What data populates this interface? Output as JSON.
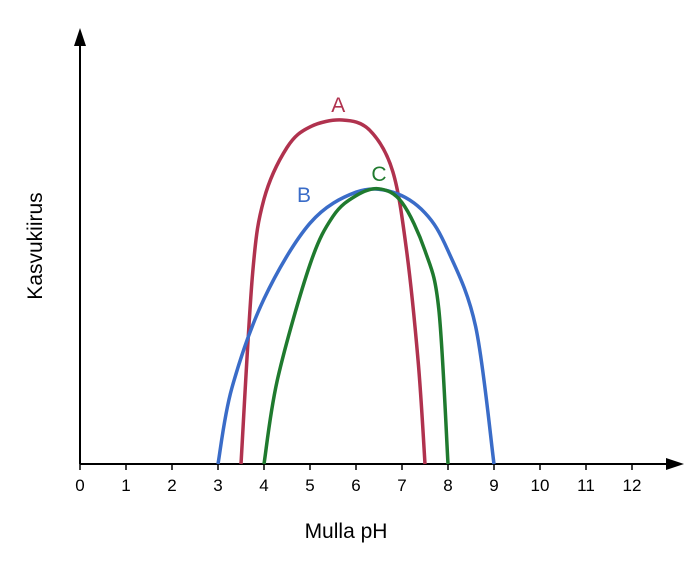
{
  "chart_data": {
    "type": "line",
    "xlabel": "Mulla pH",
    "ylabel": "Kasvukiirus",
    "x_ticks": [
      0,
      1,
      2,
      3,
      4,
      5,
      6,
      7,
      8,
      9,
      10,
      11,
      12
    ],
    "xlim": [
      0,
      13
    ],
    "ylim": [
      0,
      1
    ],
    "y_ticks_shown": false,
    "grid": false,
    "series": [
      {
        "name": "A",
        "color": "#b0324e",
        "points": [
          [
            3.5,
            0
          ],
          [
            3.75,
            0.55
          ],
          [
            4.0,
            0.77
          ],
          [
            4.5,
            0.92
          ],
          [
            5.0,
            0.98
          ],
          [
            5.7,
            1.0
          ],
          [
            6.3,
            0.97
          ],
          [
            6.8,
            0.85
          ],
          [
            7.1,
            0.62
          ],
          [
            7.35,
            0.3
          ],
          [
            7.5,
            0
          ]
        ]
      },
      {
        "name": "B",
        "color": "#3a6cc8",
        "points": [
          [
            3.0,
            0
          ],
          [
            3.3,
            0.22
          ],
          [
            4.0,
            0.48
          ],
          [
            5.0,
            0.7
          ],
          [
            6.0,
            0.79
          ],
          [
            6.8,
            0.79
          ],
          [
            7.5,
            0.73
          ],
          [
            8.0,
            0.62
          ],
          [
            8.6,
            0.4
          ],
          [
            9.0,
            0
          ]
        ]
      },
      {
        "name": "C",
        "color": "#1f7a2e",
        "points": [
          [
            4.0,
            0
          ],
          [
            4.3,
            0.25
          ],
          [
            5.0,
            0.58
          ],
          [
            5.5,
            0.72
          ],
          [
            6.0,
            0.78
          ],
          [
            6.5,
            0.8
          ],
          [
            7.0,
            0.76
          ],
          [
            7.5,
            0.62
          ],
          [
            7.8,
            0.45
          ],
          [
            8.0,
            0
          ]
        ]
      }
    ]
  }
}
